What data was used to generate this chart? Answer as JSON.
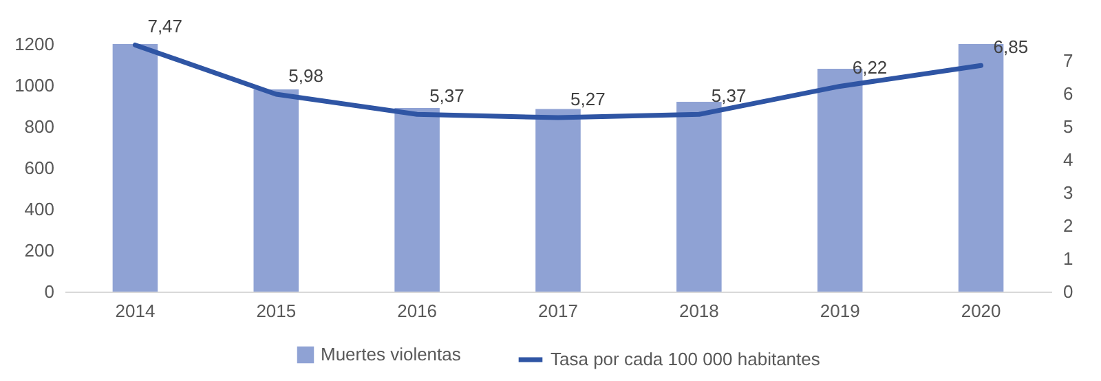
{
  "chart_data": {
    "type": "bar",
    "categories": [
      "2014",
      "2015",
      "2016",
      "2017",
      "2018",
      "2019",
      "2020"
    ],
    "series": [
      {
        "name": "Muertes violentas",
        "color": "#8fa2d4",
        "values": [
          1200,
          980,
          890,
          885,
          920,
          1080,
          1200
        ]
      },
      {
        "name": "Tasa por cada 100 000 habitantes",
        "type": "line",
        "axis": "y2",
        "color": "#2f55a4",
        "values": [
          7.47,
          5.98,
          5.37,
          5.27,
          5.37,
          6.22,
          6.85
        ],
        "value_labels": [
          "7,47",
          "5,98",
          "5,37",
          "5,27",
          "5,37",
          "6,22",
          "6,85"
        ]
      }
    ],
    "ylim": [
      0,
      1200
    ],
    "yticks": [
      0,
      200,
      400,
      600,
      800,
      1000,
      1200
    ],
    "y2lim": [
      0,
      7.5
    ],
    "y2ticks": [
      0,
      1,
      2,
      3,
      4,
      5,
      6,
      7
    ],
    "grid": false,
    "legend": "bottom"
  }
}
